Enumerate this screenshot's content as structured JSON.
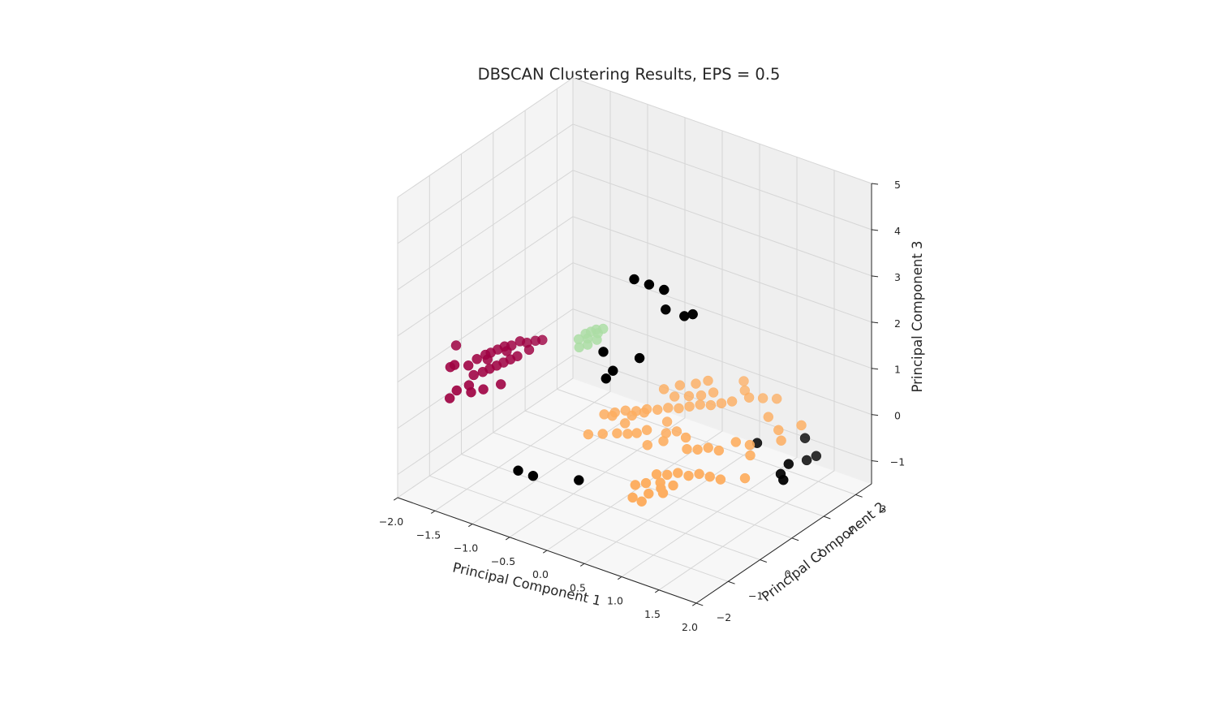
{
  "chart_data": {
    "type": "scatter",
    "subtype": "3d-scatter",
    "title": "DBSCAN Clustering Results, EPS = 0.5",
    "xlabel": "Principal Component 1",
    "ylabel": "Principal Component 2",
    "zlabel": "Principal Component 3",
    "xlim": [
      -2.0,
      2.0
    ],
    "ylim": [
      -2.0,
      3.5
    ],
    "zlim": [
      -1.5,
      5.0
    ],
    "xticks": [
      "−2.0",
      "−1.5",
      "−1.0",
      "−0.5",
      "0.0",
      "0.5",
      "1.0",
      "1.5",
      "2.0"
    ],
    "xtick_values": [
      -2.0,
      -1.5,
      -1.0,
      -0.5,
      0.0,
      0.5,
      1.0,
      1.5,
      2.0
    ],
    "yticks": [
      "−2",
      "−1",
      "0",
      "1",
      "2",
      "3"
    ],
    "ytick_values": [
      -2,
      -1,
      0,
      1,
      2,
      3
    ],
    "zticks": [
      "−1",
      "0",
      "1",
      "2",
      "3",
      "4",
      "5"
    ],
    "ztick_values": [
      -1,
      0,
      1,
      2,
      3,
      4,
      5
    ],
    "grid": true,
    "legend": "none",
    "series": [
      {
        "cluster": "noise",
        "color": "#000000",
        "points": [
          [
            0.55,
            -0.55,
            4.0
          ],
          [
            0.75,
            -0.55,
            4.0
          ],
          [
            0.95,
            -0.55,
            4.0
          ],
          [
            0.8,
            -0.15,
            3.3
          ],
          [
            1.05,
            -0.15,
            3.3
          ],
          [
            1.1,
            0.0,
            3.3
          ],
          [
            0.2,
            -0.7,
            2.3
          ],
          [
            0.35,
            -0.75,
            2.0
          ],
          [
            0.3,
            -0.85,
            1.85
          ],
          [
            0.6,
            -0.5,
            2.3
          ],
          [
            -0.45,
            -1.85,
            -0.1
          ],
          [
            -0.25,
            -1.85,
            -0.1
          ],
          [
            0.15,
            -1.35,
            -0.2
          ],
          [
            1.85,
            1.25,
            -0.1
          ],
          [
            1.85,
            1.0,
            -0.2
          ],
          [
            1.95,
            0.85,
            -0.2
          ],
          [
            1.75,
            2.35,
            -0.5
          ],
          [
            1.75,
            2.05,
            -0.45
          ],
          [
            1.6,
            2.35,
            -0.2
          ],
          [
            1.3,
            1.55,
            -0.1
          ]
        ]
      },
      {
        "cluster": "0",
        "color": "#9e0142",
        "points": [
          [
            -1.85,
            -0.7,
            0.8
          ],
          [
            -1.75,
            -0.8,
            0.95
          ],
          [
            -1.65,
            -0.6,
            0.9
          ],
          [
            -1.6,
            -0.45,
            1.0
          ],
          [
            -1.55,
            -0.3,
            1.05
          ],
          [
            -1.5,
            -0.25,
            1.1
          ],
          [
            -1.45,
            -0.15,
            1.15
          ],
          [
            -1.4,
            -0.05,
            1.2
          ],
          [
            -1.35,
            0.05,
            1.2
          ],
          [
            -1.3,
            0.2,
            1.25
          ],
          [
            -1.25,
            0.3,
            1.2
          ],
          [
            -1.2,
            0.45,
            1.2
          ],
          [
            -1.5,
            -0.5,
            0.8
          ],
          [
            -1.45,
            -0.4,
            0.85
          ],
          [
            -1.4,
            -0.3,
            0.9
          ],
          [
            -1.35,
            -0.2,
            0.95
          ],
          [
            -1.3,
            -0.1,
            1.0
          ],
          [
            -1.25,
            0.0,
            1.05
          ],
          [
            -1.6,
            -0.7,
            0.55
          ],
          [
            -1.7,
            -0.85,
            0.45
          ],
          [
            -1.75,
            -0.95,
            0.3
          ],
          [
            -1.55,
            -0.75,
            0.45
          ],
          [
            -1.45,
            -0.6,
            0.5
          ],
          [
            -1.3,
            -0.4,
            0.6
          ],
          [
            -1.9,
            -0.4,
            1.1
          ],
          [
            -1.15,
            0.55,
            1.2
          ],
          [
            -1.2,
            0.25,
            1.1
          ],
          [
            -1.35,
            -0.1,
            1.15
          ],
          [
            -1.5,
            -0.35,
            1.0
          ],
          [
            -1.6,
            -0.55,
            0.7
          ]
        ]
      },
      {
        "cluster": "1",
        "color": "#fdae61",
        "points": [
          [
            -0.3,
            0.5,
            0.1
          ],
          [
            -0.2,
            0.6,
            0.15
          ],
          [
            -0.1,
            0.7,
            0.2
          ],
          [
            0.0,
            0.8,
            0.2
          ],
          [
            0.1,
            0.9,
            0.25
          ],
          [
            0.2,
            1.0,
            0.25
          ],
          [
            0.3,
            1.1,
            0.3
          ],
          [
            0.4,
            1.2,
            0.3
          ],
          [
            0.5,
            1.3,
            0.35
          ],
          [
            0.6,
            1.4,
            0.4
          ],
          [
            0.7,
            1.5,
            0.4
          ],
          [
            0.8,
            1.6,
            0.45
          ],
          [
            0.9,
            1.7,
            0.5
          ],
          [
            0.3,
            1.3,
            0.45
          ],
          [
            0.45,
            1.4,
            0.5
          ],
          [
            0.55,
            1.55,
            0.5
          ],
          [
            0.65,
            1.7,
            0.55
          ],
          [
            0.2,
            1.2,
            0.6
          ],
          [
            0.35,
            1.35,
            0.7
          ],
          [
            0.5,
            1.5,
            0.75
          ],
          [
            0.6,
            1.65,
            0.8
          ],
          [
            -0.15,
            0.4,
            0.2
          ],
          [
            0.05,
            0.55,
            0.25
          ],
          [
            0.15,
            0.7,
            0.3
          ],
          [
            1.0,
            2.0,
            0.5
          ],
          [
            1.1,
            2.2,
            0.45
          ],
          [
            1.2,
            2.4,
            0.4
          ],
          [
            0.9,
            2.1,
            0.55
          ],
          [
            0.8,
            2.3,
            0.6
          ],
          [
            1.3,
            1.9,
            0.3
          ],
          [
            -0.3,
            0.0,
            -0.1
          ],
          [
            -0.15,
            0.1,
            -0.05
          ],
          [
            0.0,
            0.2,
            0.0
          ],
          [
            0.1,
            0.3,
            0.0
          ],
          [
            0.2,
            0.35,
            0.05
          ],
          [
            0.4,
            0.8,
            -0.05
          ],
          [
            0.5,
            0.9,
            0.0
          ],
          [
            0.35,
            0.95,
            0.1
          ],
          [
            0.7,
            -0.2,
            -0.3
          ],
          [
            0.8,
            -0.1,
            -0.3
          ],
          [
            0.9,
            0.0,
            -0.25
          ],
          [
            1.0,
            0.1,
            -0.3
          ],
          [
            1.1,
            0.2,
            -0.25
          ],
          [
            1.2,
            0.3,
            -0.3
          ],
          [
            1.3,
            0.4,
            -0.35
          ],
          [
            0.85,
            0.4,
            0.05
          ],
          [
            0.95,
            0.5,
            0.05
          ],
          [
            1.05,
            0.6,
            0.1
          ],
          [
            1.15,
            0.7,
            0.05
          ],
          [
            0.75,
            0.6,
            0.15
          ],
          [
            0.5,
            -0.4,
            -0.55
          ],
          [
            0.6,
            -0.3,
            -0.5
          ],
          [
            0.7,
            -0.45,
            -0.6
          ],
          [
            0.75,
            -0.2,
            -0.45
          ],
          [
            0.8,
            -0.3,
            -0.5
          ],
          [
            0.9,
            -0.15,
            -0.45
          ],
          [
            0.65,
            -0.55,
            -0.75
          ],
          [
            0.55,
            -0.6,
            -0.7
          ],
          [
            0.85,
            -0.35,
            -0.55
          ],
          [
            1.5,
            0.7,
            -0.35
          ],
          [
            1.4,
            1.1,
            -0.1
          ],
          [
            1.6,
            1.6,
            0.1
          ],
          [
            1.7,
            2.0,
            0.3
          ],
          [
            1.5,
            1.75,
            0.2
          ],
          [
            0.25,
            0.55,
            0.05
          ],
          [
            0.0,
            0.45,
            0.1
          ],
          [
            0.3,
            0.45,
            -0.2
          ],
          [
            0.45,
            0.6,
            -0.1
          ],
          [
            1.25,
            1.0,
            0.15
          ],
          [
            1.35,
            1.2,
            0.05
          ]
        ]
      },
      {
        "cluster": "2",
        "color": "#abdda4",
        "points": [
          [
            -0.6,
            0.4,
            1.6
          ],
          [
            -0.55,
            0.5,
            1.7
          ],
          [
            -0.5,
            0.55,
            1.75
          ],
          [
            -0.45,
            0.6,
            1.8
          ],
          [
            -0.5,
            0.45,
            1.65
          ],
          [
            -0.45,
            0.65,
            1.7
          ],
          [
            -0.4,
            0.7,
            1.8
          ],
          [
            -0.55,
            0.3,
            1.5
          ],
          [
            -0.48,
            0.4,
            1.55
          ],
          [
            -0.42,
            0.55,
            1.62
          ]
        ]
      }
    ]
  }
}
